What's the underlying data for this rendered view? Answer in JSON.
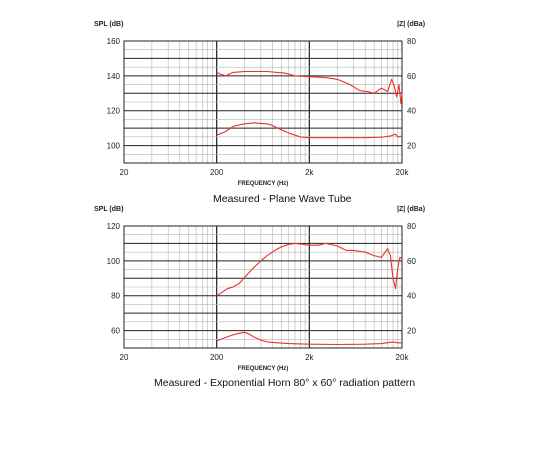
{
  "chart_data": [
    {
      "type": "line",
      "title": "",
      "caption": "Measured - Plane Wave Tube",
      "xlabel": "FREQUENCY (Hz)",
      "ylabel_left": "SPL (dB)",
      "ylabel_right": "|Z| (dBa)",
      "xscale": "log",
      "xlim": [
        20,
        20000
      ],
      "xticks": [
        {
          "value": 20,
          "label": "20"
        },
        {
          "value": 200,
          "label": "200"
        },
        {
          "value": 2000,
          "label": "2k"
        },
        {
          "value": 20000,
          "label": "20k"
        }
      ],
      "ylim_left": [
        90,
        160
      ],
      "yticks_left": [
        100,
        120,
        140,
        160
      ],
      "ylim_right": [
        10,
        80
      ],
      "yticks_right": [
        20,
        40,
        60,
        80
      ],
      "grid": true,
      "color": "#e8332a",
      "series": [
        {
          "axis": "left",
          "x": [
            200,
            220,
            250,
            300,
            400,
            500,
            700,
            900,
            1100,
            1400,
            2000,
            3000,
            4000,
            5500,
            7000,
            8500,
            10000,
            12000,
            14000,
            15500,
            16500,
            17500,
            18500,
            19500,
            20000
          ],
          "values": [
            142,
            141,
            140,
            142,
            142.5,
            142.5,
            142.5,
            142,
            141.5,
            140,
            139.5,
            139,
            138,
            135,
            131.5,
            131,
            130,
            133,
            131,
            138,
            134,
            128,
            135,
            124,
            130
          ]
        },
        {
          "axis": "right",
          "x": [
            200,
            250,
            300,
            400,
            500,
            700,
            800,
            1000,
            1300,
            1600,
            2000,
            3000,
            5000,
            8000,
            12000,
            15000,
            17000,
            18000,
            20000
          ],
          "values": [
            26,
            28,
            31,
            32.5,
            33,
            32.5,
            31.5,
            29,
            26.5,
            25,
            24.5,
            24.5,
            24.5,
            24.5,
            24.8,
            25.5,
            26.5,
            25,
            25.5
          ]
        }
      ]
    },
    {
      "type": "line",
      "title": "",
      "caption": "Measured - Exponential Horn 80° x 60° radiation pattern",
      "xlabel": "FREQUENCY (Hz)",
      "ylabel_left": "SPL (dB)",
      "ylabel_right": "|Z| (dBa)",
      "xscale": "log",
      "xlim": [
        20,
        20000
      ],
      "xticks": [
        {
          "value": 20,
          "label": "20"
        },
        {
          "value": 200,
          "label": "200"
        },
        {
          "value": 2000,
          "label": "2k"
        },
        {
          "value": 20000,
          "label": "20k"
        }
      ],
      "ylim_left": [
        50,
        120
      ],
      "yticks_left": [
        60,
        80,
        100,
        120
      ],
      "ylim_right": [
        10,
        80
      ],
      "yticks_right": [
        20,
        40,
        60,
        80
      ],
      "grid": true,
      "color": "#e8332a",
      "series": [
        {
          "axis": "left",
          "x": [
            200,
            230,
            260,
            300,
            350,
            400,
            500,
            600,
            700,
            850,
            1000,
            1200,
            1400,
            1700,
            2000,
            2500,
            3000,
            4000,
            5000,
            6000,
            8000,
            10000,
            12000,
            14000,
            15000,
            16000,
            17000,
            18000,
            19000,
            20000
          ],
          "values": [
            80,
            82,
            84,
            85,
            87,
            90.5,
            96,
            100,
            103,
            106,
            108,
            109.5,
            110,
            109.5,
            109,
            109,
            110,
            108.5,
            106,
            106,
            105,
            103,
            102,
            107,
            103,
            90,
            84,
            96,
            102,
            101
          ]
        },
        {
          "axis": "right",
          "x": [
            200,
            250,
            300,
            350,
            400,
            450,
            500,
            600,
            700,
            900,
            1200,
            2000,
            4000,
            8000,
            12000,
            16000,
            18000,
            20000
          ],
          "values": [
            14,
            16,
            17.5,
            18.5,
            19,
            18,
            16.5,
            14.5,
            13.5,
            13,
            12.5,
            12.2,
            12,
            12.2,
            12.5,
            13.5,
            13,
            13
          ]
        }
      ]
    }
  ]
}
